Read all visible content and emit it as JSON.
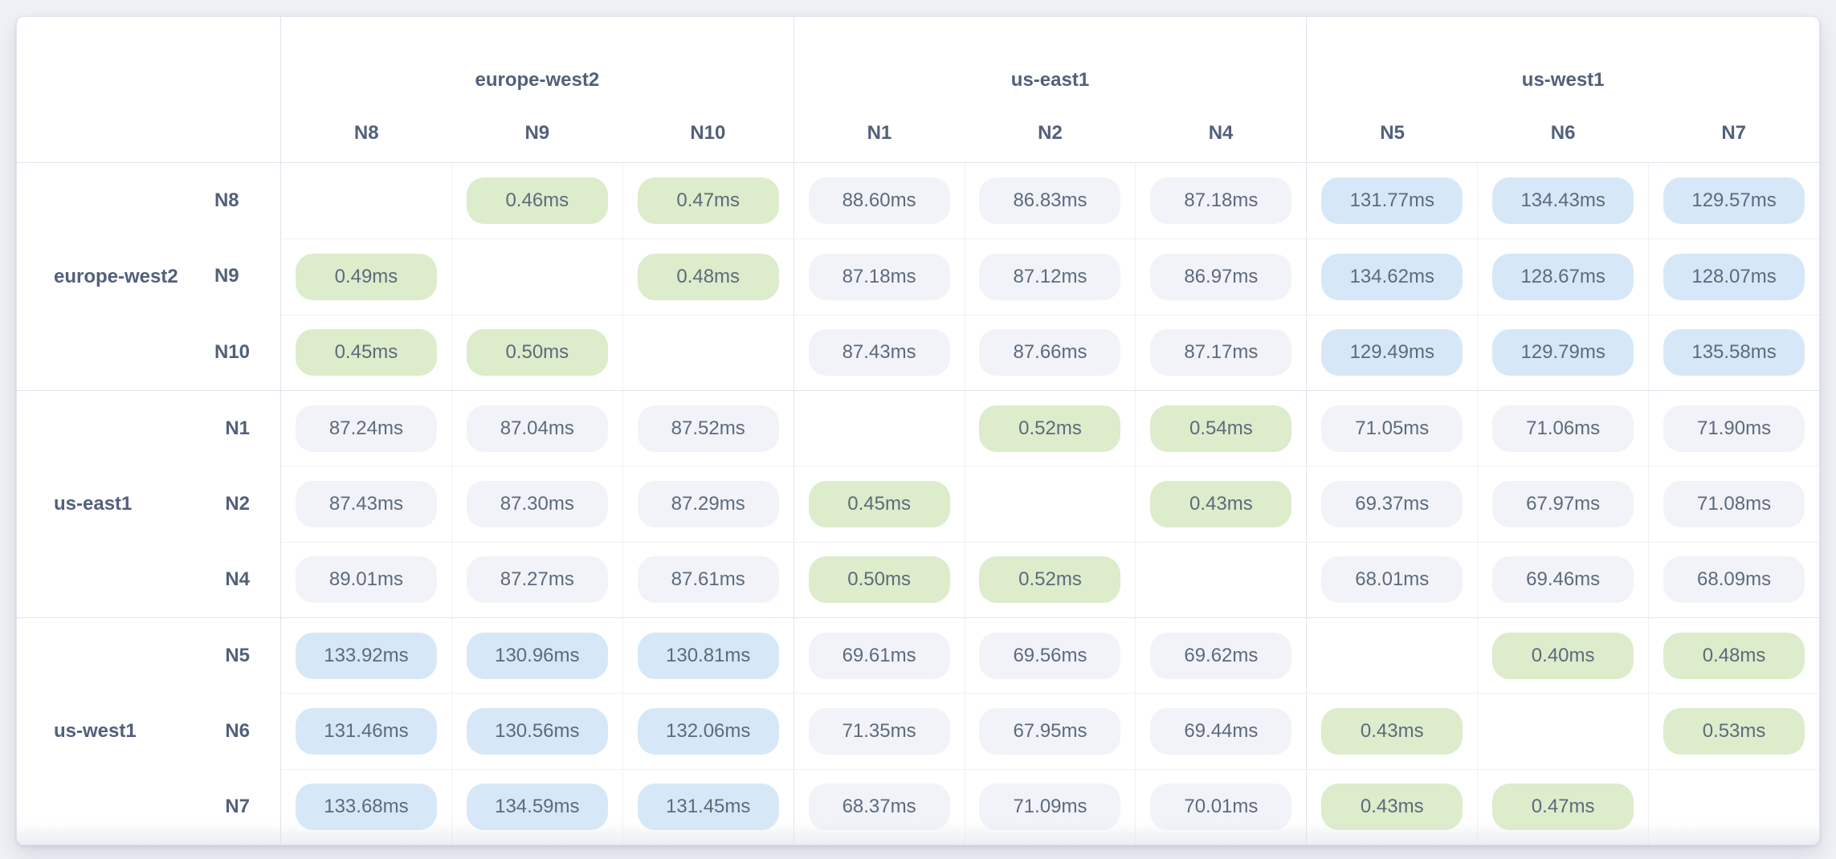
{
  "chart_data": {
    "type": "heatmap",
    "description": "Node-to-node network latency matrix grouped by region",
    "unit": "ms",
    "value_format": "{value}ms",
    "groups": [
      {
        "region": "europe-west2",
        "nodes": [
          "N8",
          "N9",
          "N10"
        ]
      },
      {
        "region": "us-east1",
        "nodes": [
          "N1",
          "N2",
          "N4"
        ]
      },
      {
        "region": "us-west1",
        "nodes": [
          "N5",
          "N6",
          "N7"
        ]
      }
    ],
    "columns": [
      "N8",
      "N9",
      "N10",
      "N1",
      "N2",
      "N4",
      "N5",
      "N6",
      "N7"
    ],
    "rows": [
      "N8",
      "N9",
      "N10",
      "N1",
      "N2",
      "N4",
      "N5",
      "N6",
      "N7"
    ],
    "matrix_ms": [
      [
        null,
        0.46,
        0.47,
        88.6,
        86.83,
        87.18,
        131.77,
        134.43,
        129.57
      ],
      [
        0.49,
        null,
        0.48,
        87.18,
        87.12,
        86.97,
        134.62,
        128.67,
        128.07
      ],
      [
        0.45,
        0.5,
        null,
        87.43,
        87.66,
        87.17,
        129.49,
        129.79,
        135.58
      ],
      [
        87.24,
        87.04,
        87.52,
        null,
        0.52,
        0.54,
        71.05,
        71.06,
        71.9
      ],
      [
        87.43,
        87.3,
        87.29,
        0.45,
        null,
        0.43,
        69.37,
        67.97,
        71.08
      ],
      [
        89.01,
        87.27,
        87.61,
        0.5,
        0.52,
        null,
        68.01,
        69.46,
        68.09
      ],
      [
        133.92,
        130.96,
        130.81,
        69.61,
        69.56,
        69.62,
        null,
        0.4,
        0.48
      ],
      [
        131.46,
        130.56,
        132.06,
        71.35,
        67.95,
        69.44,
        0.43,
        null,
        0.53
      ],
      [
        133.68,
        134.59,
        131.45,
        68.37,
        71.09,
        70.01,
        0.43,
        0.47,
        null
      ]
    ],
    "thresholds_ms": {
      "low_below": 1,
      "high_at_or_above": 100
    },
    "legend": {
      "low_intra_region": "green pill",
      "mid_inter_region": "gray pill",
      "high_inter_region": "blue pill"
    },
    "grid": "on",
    "diagonal": "empty"
  },
  "colors": {
    "page_bg": "#eff1f6",
    "card_bg": "#ffffff",
    "label_text": "#52607a",
    "value_text": "#5d6a7d",
    "line_strong": "#dfe3ec",
    "line_light": "#eef0f6",
    "pill_low": "#ddecca",
    "pill_mid": "#f1f3f8",
    "pill_high": "#d6e8f8"
  }
}
